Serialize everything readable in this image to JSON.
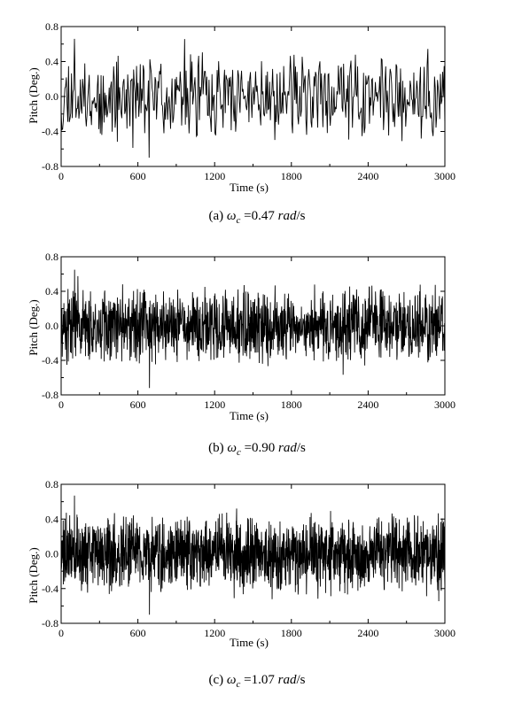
{
  "chart_data": [
    {
      "type": "line",
      "panel": "a",
      "caption": {
        "prefix": "(a)",
        "symbol": "ω",
        "sub": "c",
        "eq": " =0.47 ",
        "unit_it": "rad",
        "unit_tail": "/s"
      },
      "xlabel": "Time (s)",
      "ylabel": "Pitch (Deg.)",
      "xlim": [
        0,
        3000
      ],
      "ylim": [
        -0.8,
        0.8
      ],
      "xticks": [
        "0",
        "600",
        "1200",
        "1800",
        "2400",
        "3000"
      ],
      "yticks": [
        "-0.8",
        "-0.4",
        "0.0",
        "0.4",
        "0.8"
      ],
      "series": [
        {
          "x_start": 0,
          "x_end": 3000,
          "samples": 520,
          "amplitude_peak": 0.66,
          "amplitude_min": -0.7,
          "envelope": 0.55,
          "seed": 11
        }
      ],
      "color": "#000000"
    },
    {
      "type": "line",
      "panel": "b",
      "caption": {
        "prefix": "(b)",
        "symbol": "ω",
        "sub": "c",
        "eq": " =0.90 ",
        "unit_it": "rad",
        "unit_tail": "/s"
      },
      "xlabel": "Time (s)",
      "ylabel": "Pitch (Deg.)",
      "xlim": [
        0,
        3000
      ],
      "ylim": [
        -0.8,
        0.8
      ],
      "xticks": [
        "0",
        "600",
        "1200",
        "1800",
        "2400",
        "3000"
      ],
      "yticks": [
        "-0.8",
        "-0.4",
        "0.0",
        "0.4",
        "0.8"
      ],
      "series": [
        {
          "x_start": 0,
          "x_end": 3000,
          "samples": 1400,
          "amplitude_peak": 0.65,
          "amplitude_min": -0.72,
          "envelope": 0.5,
          "seed": 23
        }
      ],
      "color": "#000000"
    },
    {
      "type": "line",
      "panel": "c",
      "caption": {
        "prefix": "(c)",
        "symbol": "ω",
        "sub": "c",
        "eq": " =1.07 ",
        "unit_it": "rad",
        "unit_tail": "/s"
      },
      "xlabel": "Time (s)",
      "ylabel": "Pitch (Deg.)",
      "xlim": [
        0,
        3000
      ],
      "ylim": [
        -0.8,
        0.8
      ],
      "xticks": [
        "0",
        "600",
        "1200",
        "1800",
        "2400",
        "3000"
      ],
      "yticks": [
        "-0.8",
        "-0.4",
        "0.0",
        "0.4",
        "0.8"
      ],
      "series": [
        {
          "x_start": 0,
          "x_end": 3000,
          "samples": 1700,
          "amplitude_peak": 0.67,
          "amplitude_min": -0.7,
          "envelope": 0.5,
          "seed": 37
        }
      ],
      "color": "#000000"
    }
  ]
}
